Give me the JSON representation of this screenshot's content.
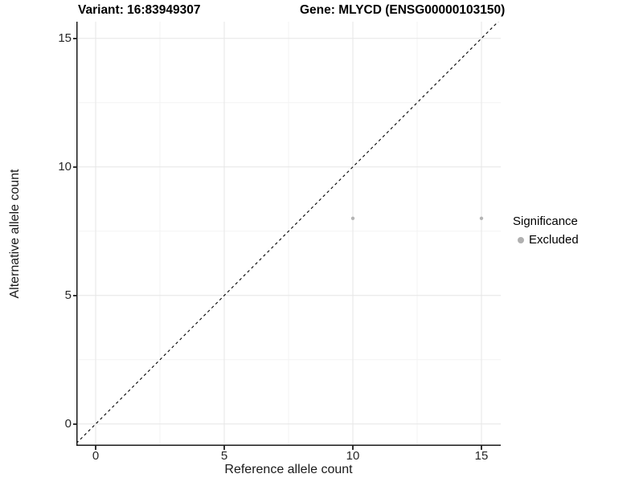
{
  "chart_data": {
    "type": "scatter",
    "title_left": "Variant: 16:83949307",
    "title_right": "Gene: MLYCD (ENSG00000103150)",
    "xlabel": "Reference allele count",
    "ylabel": "Alternative allele count",
    "xlim": [
      -0.75,
      15.75
    ],
    "ylim": [
      -0.85,
      15.65
    ],
    "xticks": [
      0,
      5,
      10,
      15
    ],
    "yticks": [
      0,
      5,
      10,
      15
    ],
    "x_minor": [
      2.5,
      7.5,
      12.5
    ],
    "y_minor": [
      2.5,
      7.5,
      12.5
    ],
    "grid": "major+minor, light gray on white",
    "identity_line": {
      "slope": 1,
      "intercept": 0,
      "style": "dashed",
      "color": "#000000"
    },
    "series": [
      {
        "name": "Excluded",
        "color": "#b5b5b5",
        "points": [
          {
            "x": 10,
            "y": 8
          },
          {
            "x": 15,
            "y": 8
          }
        ]
      }
    ],
    "legend": {
      "title": "Significance",
      "position": "right",
      "items": [
        {
          "label": "Excluded",
          "color": "#b0b0b0"
        }
      ]
    },
    "colors": {
      "grid_major": "#e6e6e6",
      "grid_minor": "#f3f3f3",
      "axis_line": "#1a1a1a",
      "tick_mark": "#333333",
      "tick_label": "#262626",
      "background": "#ffffff"
    }
  }
}
